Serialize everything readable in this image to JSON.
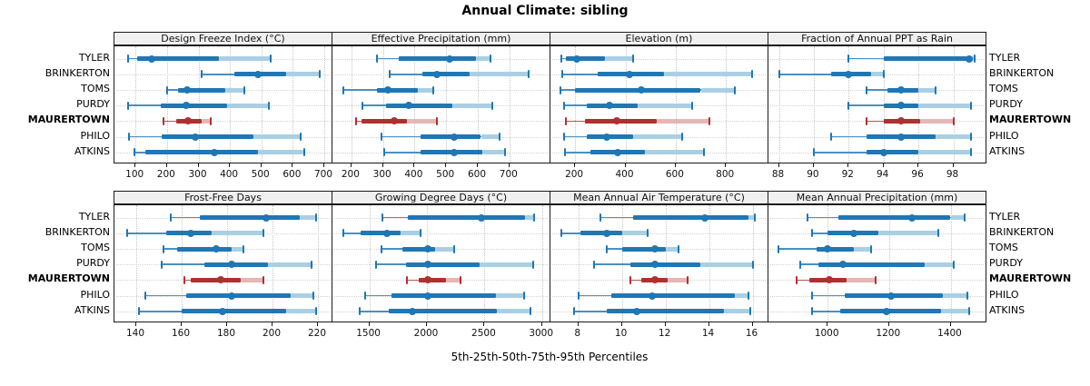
{
  "title": "Annual Climate: sibling",
  "xlabel": "5th-25th-50th-75th-95th Percentiles",
  "stations": [
    "TYLER",
    "BRINKERTON",
    "TOMS",
    "PURDY",
    "MAURERTOWN",
    "PHILO",
    "ATKINS"
  ],
  "highlight_station": "MAURERTOWN",
  "colors": {
    "series_dark": "#1f77b4",
    "series_light": "#a9cfe5",
    "highlight_dark": "#b03030",
    "highlight_light": "#e7b6b4",
    "grid": "#c6c6c6",
    "header_bg": "#f0f0f0",
    "border": "#1a1a1a"
  },
  "chart_data": {
    "type": "percentile interval dot plot (trellis, 2 rows x 4 panels)",
    "percentiles": [
      5,
      25,
      50,
      75,
      95
    ],
    "legend": "dot = median, thick dark band = 25th-75th, light band = 75th-95th, capped line = 5th-95th",
    "panels": [
      {
        "title": "Design Freeze Index (°C)",
        "row": 0,
        "col": 0,
        "ticks": [
          100,
          200,
          300,
          400,
          500,
          600,
          700
        ],
        "domain": [
          33,
          726
        ],
        "series": [
          {
            "name": "TYLER",
            "values": [
              75,
              105,
              150,
              365,
              530
            ]
          },
          {
            "name": "BRINKERTON",
            "values": [
              310,
              415,
              490,
              580,
              685
            ]
          },
          {
            "name": "TOMS",
            "values": [
              200,
              235,
              265,
              385,
              445
            ]
          },
          {
            "name": "PURDY",
            "values": [
              75,
              180,
              262,
              390,
              525
            ]
          },
          {
            "name": "MAURERTOWN",
            "values": [
              190,
              230,
              268,
              310,
              340
            ]
          },
          {
            "name": "PHILO",
            "values": [
              80,
              182,
              290,
              475,
              625
            ]
          },
          {
            "name": "ATKINS",
            "values": [
              95,
              132,
              350,
              490,
              635
            ]
          }
        ]
      },
      {
        "title": "Effective Precipitation (mm)",
        "row": 0,
        "col": 1,
        "ticks": [
          200,
          300,
          400,
          500,
          600,
          700
        ],
        "domain": [
          140,
          830
        ],
        "series": [
          {
            "name": "TYLER",
            "values": [
              280,
              350,
              512,
              595,
              640
            ]
          },
          {
            "name": "BRINKERTON",
            "values": [
              320,
              425,
              470,
              575,
              760
            ]
          },
          {
            "name": "TOMS",
            "values": [
              175,
              280,
              315,
              410,
              458
            ]
          },
          {
            "name": "PURDY",
            "values": [
              235,
              310,
              380,
              520,
              645
            ]
          },
          {
            "name": "MAURERTOWN",
            "values": [
              215,
              232,
              335,
              375,
              470
            ]
          },
          {
            "name": "PHILO",
            "values": [
              295,
              420,
              525,
              610,
              670
            ]
          },
          {
            "name": "ATKINS",
            "values": [
              305,
              420,
              525,
              615,
              685
            ]
          }
        ]
      },
      {
        "title": "Elevation (m)",
        "row": 0,
        "col": 2,
        "ticks": [
          200,
          400,
          600,
          800
        ],
        "domain": [
          102,
          969
        ],
        "series": [
          {
            "name": "TYLER",
            "values": [
              145,
              165,
              205,
              320,
              430
            ]
          },
          {
            "name": "BRINKERTON",
            "values": [
              150,
              290,
              415,
              555,
              905
            ]
          },
          {
            "name": "TOMS",
            "values": [
              140,
              200,
              462,
              700,
              835
            ]
          },
          {
            "name": "PURDY",
            "values": [
              155,
              245,
              335,
              450,
              665
            ]
          },
          {
            "name": "MAURERTOWN",
            "values": [
              165,
              240,
              365,
              525,
              735
            ]
          },
          {
            "name": "PHILO",
            "values": [
              155,
              245,
              325,
              430,
              625
            ]
          },
          {
            "name": "ATKINS",
            "values": [
              160,
              262,
              368,
              478,
              712
            ]
          }
        ]
      },
      {
        "title": "Fraction of Annual PPT as Rain",
        "row": 0,
        "col": 3,
        "ticks": [
          88,
          90,
          92,
          94,
          96,
          98
        ],
        "domain": [
          87.4,
          99.9
        ],
        "series": [
          {
            "name": "TYLER",
            "values": [
              92,
              94,
              98.9,
              99.0,
              99.2
            ]
          },
          {
            "name": "BRINKERTON",
            "values": [
              88,
              91,
              92,
              93.3,
              94
            ]
          },
          {
            "name": "TOMS",
            "values": [
              93,
              94.2,
              95,
              96,
              97
            ]
          },
          {
            "name": "PURDY",
            "values": [
              92,
              94,
              95,
              96,
              99
            ]
          },
          {
            "name": "MAURERTOWN",
            "values": [
              93,
              94,
              95,
              96.1,
              98
            ]
          },
          {
            "name": "PHILO",
            "values": [
              91,
              93,
              95,
              97,
              99
            ]
          },
          {
            "name": "ATKINS",
            "values": [
              90,
              93,
              94,
              96,
              99
            ]
          }
        ]
      },
      {
        "title": "Frost-Free Days",
        "row": 1,
        "col": 0,
        "ticks": [
          140,
          160,
          180,
          200,
          220
        ],
        "domain": [
          130.4,
          226.4
        ],
        "series": [
          {
            "name": "TYLER",
            "values": [
              155,
              168,
              197,
              212,
              219
            ]
          },
          {
            "name": "BRINKERTON",
            "values": [
              136,
              153,
              164,
              173,
              196
            ]
          },
          {
            "name": "TOMS",
            "values": [
              152,
              158,
              175,
              182,
              187
            ]
          },
          {
            "name": "PURDY",
            "values": [
              151,
              170,
              182,
              198,
              217
            ]
          },
          {
            "name": "MAURERTOWN",
            "values": [
              161,
              164,
              177,
              186,
              196
            ]
          },
          {
            "name": "PHILO",
            "values": [
              144,
              162,
              182,
              208,
              218
            ]
          },
          {
            "name": "ATKINS",
            "values": [
              141,
              160,
              178,
              206,
              219
            ]
          }
        ]
      },
      {
        "title": "Growing Degree Days (°C)",
        "row": 1,
        "col": 1,
        "ticks": [
          1500,
          2000,
          2500,
          3000
        ],
        "domain": [
          1180,
          3073
        ],
        "series": [
          {
            "name": "TYLER",
            "values": [
              1615,
              1835,
              2470,
              2850,
              2930
            ]
          },
          {
            "name": "BRINKERTON",
            "values": [
              1275,
              1425,
              1650,
              1770,
              1945
            ]
          },
          {
            "name": "TOMS",
            "values": [
              1605,
              1790,
              2010,
              2070,
              2235
            ]
          },
          {
            "name": "PURDY",
            "values": [
              1560,
              1820,
              2010,
              2455,
              2920
            ]
          },
          {
            "name": "MAURERTOWN",
            "values": [
              1825,
              1925,
              2010,
              2165,
              2290
            ]
          },
          {
            "name": "PHILO",
            "values": [
              1460,
              1690,
              2010,
              2600,
              2845
            ]
          },
          {
            "name": "ATKINS",
            "values": [
              1415,
              1665,
              1870,
              2610,
              2900
            ]
          }
        ]
      },
      {
        "title": "Mean Annual Air Temperature (°C)",
        "row": 1,
        "col": 2,
        "ticks": [
          8,
          10,
          12,
          14,
          16
        ],
        "domain": [
          6.72,
          16.73
        ],
        "series": [
          {
            "name": "TYLER",
            "values": [
              9.0,
              10.5,
              13.8,
              15.8,
              16.1
            ]
          },
          {
            "name": "BRINKERTON",
            "values": [
              7.2,
              8.1,
              9.3,
              10.0,
              11.2
            ]
          },
          {
            "name": "TOMS",
            "values": [
              9.3,
              10.0,
              11.5,
              12.0,
              12.6
            ]
          },
          {
            "name": "PURDY",
            "values": [
              8.7,
              10.4,
              11.5,
              13.6,
              16.0
            ]
          },
          {
            "name": "MAURERTOWN",
            "values": [
              10.4,
              10.9,
              11.5,
              12.1,
              13.0
            ]
          },
          {
            "name": "PHILO",
            "values": [
              8.0,
              9.5,
              11.4,
              15.2,
              15.8
            ]
          },
          {
            "name": "ATKINS",
            "values": [
              7.8,
              9.3,
              10.7,
              14.7,
              15.9
            ]
          }
        ]
      },
      {
        "title": "Mean Annual Precipitation (mm)",
        "row": 1,
        "col": 3,
        "ticks": [
          1000,
          1200,
          1400
        ],
        "domain": [
          807,
          1517
        ],
        "series": [
          {
            "name": "TYLER",
            "values": [
              935,
              1035,
              1275,
              1400,
              1445
            ]
          },
          {
            "name": "BRINKERTON",
            "values": [
              950,
              1000,
              1085,
              1165,
              1360
            ]
          },
          {
            "name": "TOMS",
            "values": [
              840,
              965,
              1000,
              1085,
              1140
            ]
          },
          {
            "name": "PURDY",
            "values": [
              910,
              970,
              1050,
              1315,
              1410
            ]
          },
          {
            "name": "MAURERTOWN",
            "values": [
              900,
              940,
              1005,
              1060,
              1155
            ]
          },
          {
            "name": "PHILO",
            "values": [
              950,
              1055,
              1205,
              1375,
              1455
            ]
          },
          {
            "name": "ATKINS",
            "values": [
              950,
              1040,
              1190,
              1370,
              1460
            ]
          }
        ]
      }
    ]
  }
}
